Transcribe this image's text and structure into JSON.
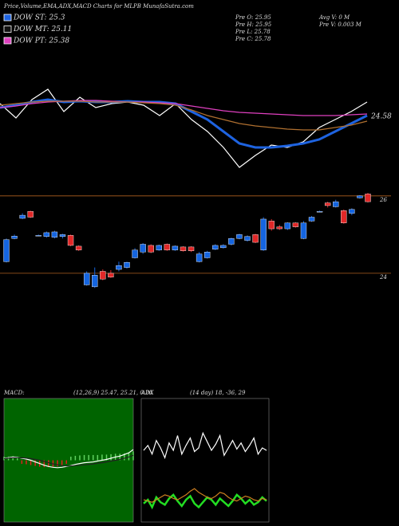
{
  "header": {
    "title": "Price,Volume,EMA,ADX,MACD Charts for MLPB MunafaSutra.com",
    "dow": [
      {
        "label": "DOW ST: 25.3",
        "color": "#1e63e0"
      },
      {
        "label": "DOW MT: 25.11",
        "color": "#111111"
      },
      {
        "label": "DOW PT: 25.38",
        "color": "#e040c0"
      }
    ],
    "pre": [
      "Pre  O: 25.95",
      "Pre  H: 25.95",
      "Pre  L: 25.78",
      "Pre  C: 25.78"
    ],
    "volume": [
      "Avg V: 0  M",
      "Pre  V: 0.003 M"
    ]
  },
  "chart_data": [
    {
      "type": "line",
      "ylim": [
        22.9,
        26.3
      ],
      "annotation": {
        "text": "24.58",
        "value": 24.58
      },
      "series": [
        {
          "name": "Price",
          "color": "#ffffff",
          "values": [
            24.9,
            24.54,
            25.0,
            25.26,
            24.7,
            25.06,
            24.8,
            24.9,
            24.94,
            24.86,
            24.6,
            24.9,
            24.5,
            24.2,
            23.8,
            23.3,
            23.6,
            23.86,
            23.8,
            23.94,
            24.3,
            24.5,
            24.7,
            24.94
          ]
        },
        {
          "name": "EMA short",
          "color": "#1e63e0",
          "values": [
            24.8,
            24.86,
            24.94,
            25.0,
            24.94,
            24.96,
            24.94,
            24.94,
            24.96,
            24.94,
            24.94,
            24.9,
            24.7,
            24.5,
            24.2,
            23.9,
            23.8,
            23.8,
            23.84,
            23.9,
            24.0,
            24.2,
            24.4,
            24.6
          ]
        },
        {
          "name": "EMA long",
          "color": "#e040c0",
          "values": [
            24.8,
            24.84,
            24.9,
            24.94,
            24.96,
            24.98,
            24.98,
            24.96,
            24.94,
            24.94,
            24.92,
            24.9,
            24.84,
            24.78,
            24.72,
            24.68,
            24.66,
            24.64,
            24.62,
            24.6,
            24.6,
            24.6,
            24.62,
            24.64
          ]
        },
        {
          "name": "EMA mid",
          "color": "#b07030",
          "values": [
            24.86,
            24.9,
            24.94,
            24.96,
            24.96,
            24.96,
            24.94,
            24.94,
            24.94,
            24.92,
            24.9,
            24.86,
            24.74,
            24.6,
            24.5,
            24.4,
            24.34,
            24.3,
            24.26,
            24.24,
            24.24,
            24.3,
            24.36,
            24.46
          ]
        }
      ]
    },
    {
      "type": "candlestick",
      "ylim": [
        23.4,
        26.12
      ],
      "yticks": [
        24,
        26
      ],
      "up_color": "#1565e0",
      "down_color": "#e02828",
      "grid_color": "#b06020",
      "open": [
        24.3,
        24.9,
        25.42,
        25.6,
        24.98,
        24.95,
        24.93,
        24.95,
        24.98,
        24.7,
        23.7,
        23.65,
        24.05,
        24.0,
        24.1,
        24.15,
        24.4,
        24.55,
        24.72,
        24.6,
        24.75,
        24.6,
        24.68,
        24.68,
        24.3,
        24.4,
        24.62,
        24.66,
        24.75,
        24.9,
        24.85,
        25.0,
        24.6,
        25.35,
        25.2,
        25.15,
        25.3,
        24.9,
        25.35,
        25.6,
        25.82,
        25.72,
        25.62,
        25.55,
        25.95,
        26.05
      ],
      "high": [
        24.9,
        25.0,
        25.55,
        25.62,
        25.0,
        25.08,
        25.1,
        25.02,
        25.0,
        24.72,
        24.05,
        24.15,
        24.1,
        24.08,
        24.3,
        24.3,
        24.65,
        24.78,
        24.75,
        24.74,
        24.77,
        24.72,
        24.7,
        24.7,
        24.55,
        24.58,
        24.75,
        24.75,
        24.92,
        25.02,
        24.98,
        25.02,
        25.45,
        25.4,
        25.25,
        25.32,
        25.32,
        25.35,
        25.48,
        25.62,
        25.85,
        25.9,
        25.65,
        25.68,
        26.02,
        26.08
      ],
      "low": [
        24.28,
        24.88,
        25.4,
        25.43,
        24.96,
        24.92,
        24.9,
        24.9,
        24.7,
        24.58,
        23.68,
        23.62,
        23.82,
        23.88,
        24.05,
        24.12,
        24.38,
        24.5,
        24.52,
        24.58,
        24.58,
        24.58,
        24.56,
        24.55,
        24.28,
        24.38,
        24.6,
        24.64,
        24.72,
        24.88,
        24.82,
        24.78,
        24.58,
        25.1,
        25.12,
        25.12,
        25.18,
        24.88,
        25.33,
        25.58,
        25.7,
        25.7,
        25.28,
        25.5,
        25.93,
        25.83
      ],
      "close": [
        24.87,
        24.96,
        25.5,
        25.45,
        24.98,
        25.05,
        25.07,
        25.0,
        24.72,
        24.6,
        24.0,
        23.95,
        23.85,
        23.9,
        24.2,
        24.28,
        24.6,
        24.75,
        24.55,
        24.72,
        24.6,
        24.7,
        24.58,
        24.58,
        24.5,
        24.55,
        24.72,
        24.72,
        24.9,
        25.0,
        24.95,
        24.8,
        25.4,
        25.15,
        25.15,
        25.3,
        25.2,
        25.3,
        25.45,
        25.6,
        25.75,
        25.85,
        25.3,
        25.65,
        26.0,
        25.85
      ]
    },
    {
      "type": "macd",
      "title": "MACD:",
      "subtitle": "(12,26,9) 25.47, 25.21, 0.26",
      "ylim": [
        -1.5,
        1.5
      ],
      "background": "#006400",
      "series": [
        {
          "name": "MACD",
          "color": "#ffffff",
          "values": [
            0.05,
            0.06,
            0.08,
            0.07,
            0.05,
            0.03,
            0,
            -0.04,
            -0.08,
            -0.12,
            -0.15,
            -0.17,
            -0.18,
            -0.17,
            -0.15,
            -0.13,
            -0.1,
            -0.08,
            -0.06,
            -0.05,
            -0.04,
            -0.02,
            0,
            0.02,
            0.05,
            0.08,
            0.1,
            0.14,
            0.18,
            0.26
          ]
        },
        {
          "name": "Signal",
          "color": "#222222",
          "values": [
            0.04,
            0.05,
            0.06,
            0.06,
            0.06,
            0.05,
            0.04,
            0.02,
            0,
            -0.03,
            -0.06,
            -0.09,
            -0.11,
            -0.13,
            -0.14,
            -0.14,
            -0.13,
            -0.12,
            -0.11,
            -0.1,
            -0.09,
            -0.07,
            -0.06,
            -0.04,
            -0.02,
            0,
            0.02,
            0.05,
            0.08,
            0.12
          ]
        }
      ],
      "histogram": {
        "up_color": "#60d060",
        "down_color": "#e02020",
        "values": [
          0.01,
          0.01,
          0.02,
          0.01,
          -0.01,
          -0.02,
          -0.04,
          -0.06,
          -0.08,
          -0.09,
          -0.09,
          -0.08,
          -0.07,
          -0.04,
          -0.01,
          0.01,
          0.03,
          0.04,
          0.05,
          0.05,
          0.05,
          0.05,
          0.06,
          0.06,
          0.07,
          0.08,
          0.08,
          0.09,
          0.1,
          0.14
        ]
      }
    },
    {
      "type": "adx",
      "title": "ADX",
      "subtitle": "(14 day) 18, -36, 29",
      "ylim": [
        0,
        100
      ],
      "background": "#000000",
      "series": [
        {
          "name": "+DI",
          "color": "#ffffff",
          "values": [
            58,
            62,
            55,
            66,
            60,
            52,
            64,
            58,
            70,
            55,
            62,
            68,
            57,
            60,
            72,
            65,
            58,
            63,
            70,
            54,
            60,
            66,
            59,
            64,
            57,
            62,
            68,
            55,
            60,
            58
          ]
        },
        {
          "name": "-DI",
          "color": "#22dd22",
          "values": [
            15,
            18,
            12,
            20,
            16,
            14,
            19,
            22,
            17,
            13,
            18,
            21,
            15,
            12,
            16,
            20,
            18,
            14,
            19,
            16,
            13,
            17,
            22,
            19,
            15,
            18,
            14,
            16,
            20,
            17
          ]
        },
        {
          "name": "ADX",
          "color": "#d08020",
          "values": [
            18,
            17,
            16,
            18,
            20,
            22,
            21,
            19,
            18,
            20,
            22,
            25,
            27,
            24,
            22,
            20,
            19,
            21,
            24,
            23,
            20,
            18,
            17,
            19,
            21,
            20,
            18,
            17,
            19,
            18
          ]
        }
      ]
    }
  ]
}
